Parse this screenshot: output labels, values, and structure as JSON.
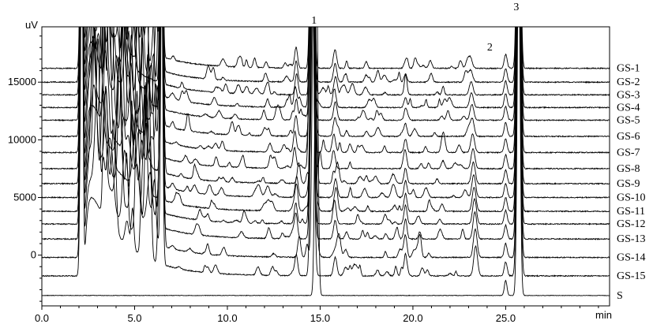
{
  "chart_data": {
    "type": "line",
    "title": "",
    "xlabel": "min",
    "ylabel": "uV",
    "xlim": [
      0,
      30.6
    ],
    "ylim": [
      -4400,
      19800
    ],
    "x_ticks": [
      0,
      5,
      10,
      15,
      20,
      25
    ],
    "x_tick_labels": [
      "0.0",
      "5.0",
      "10.0",
      "15.0",
      "20.0",
      "25.0"
    ],
    "y_ticks": [
      0,
      5000,
      10000,
      15000
    ],
    "y_tick_labels": [
      "0",
      "5000",
      "10000",
      "15000"
    ],
    "grid": false,
    "legend": "none (traces labelled at right edge)",
    "series": [
      {
        "name": "GS-1",
        "baseline": 16200
      },
      {
        "name": "GS-2",
        "baseline": 15000
      },
      {
        "name": "GS-3",
        "baseline": 13900
      },
      {
        "name": "GS-4",
        "baseline": 12800
      },
      {
        "name": "GS-5",
        "baseline": 11700
      },
      {
        "name": "GS-6",
        "baseline": 10300
      },
      {
        "name": "GS-7",
        "baseline": 8900
      },
      {
        "name": "GS-8",
        "baseline": 7500
      },
      {
        "name": "GS-9",
        "baseline": 6200
      },
      {
        "name": "GS-10",
        "baseline": 5000
      },
      {
        "name": "GS-11",
        "baseline": 3800
      },
      {
        "name": "GS-12",
        "baseline": 2700
      },
      {
        "name": "GS-13",
        "baseline": 1400
      },
      {
        "name": "GS-14",
        "baseline": -200
      },
      {
        "name": "GS-15",
        "baseline": -1800
      },
      {
        "name": "S",
        "baseline": -3500
      }
    ],
    "peaks": [
      {
        "label": "1",
        "time": 14.8
      },
      {
        "label": "2",
        "time": 25.0
      },
      {
        "label": "3",
        "time": 25.7
      }
    ]
  }
}
